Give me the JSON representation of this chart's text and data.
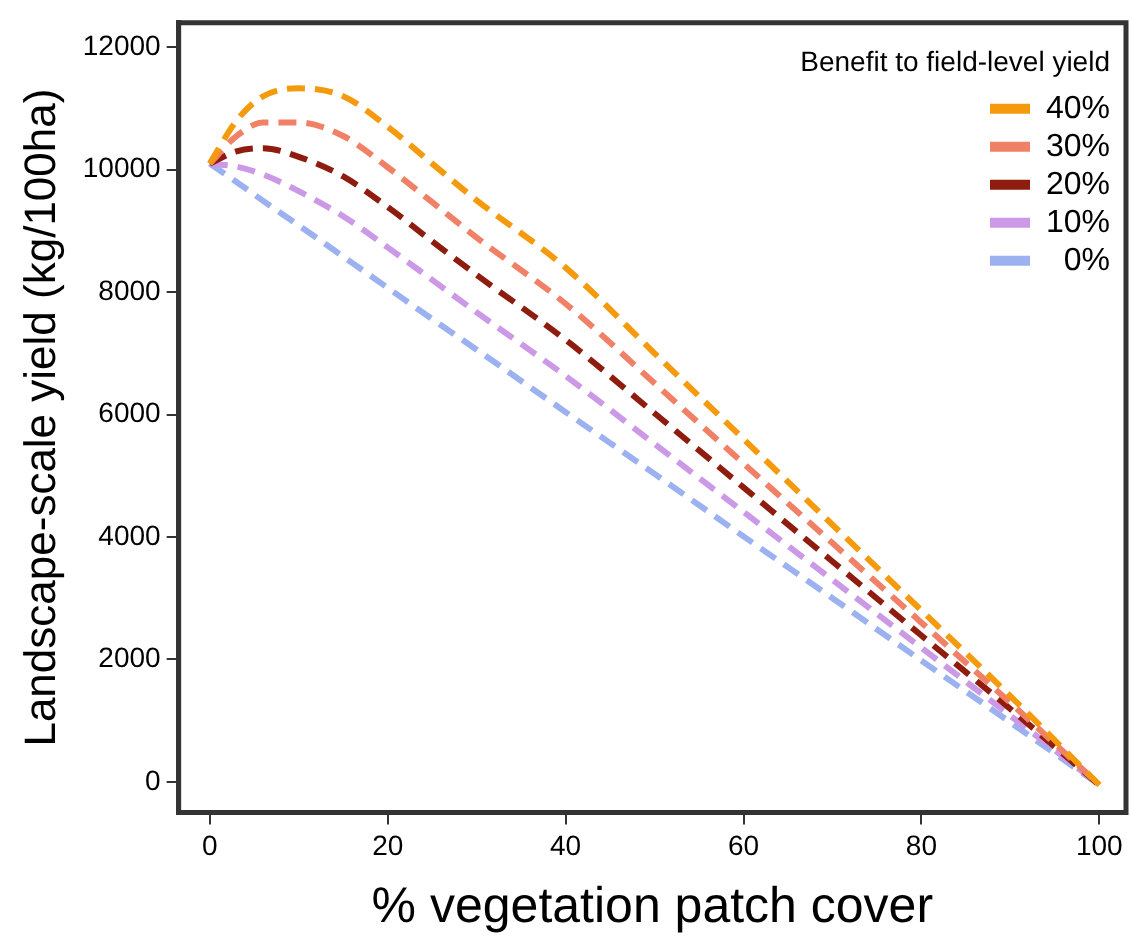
{
  "chart_data": {
    "type": "line",
    "xlabel": "% vegetation patch cover",
    "ylabel": "Landscape-scale yield (kg/100ha)",
    "legend_title": "Benefit to field-level yield",
    "legend": "top right",
    "line_style": "dashed",
    "marker": "none",
    "grid": false,
    "x": [
      0,
      3,
      6,
      10,
      15,
      20,
      25,
      30,
      40,
      50,
      60,
      70,
      80,
      90,
      100
    ],
    "xlim": [
      -3.5,
      103
    ],
    "xticks": [
      0,
      20,
      40,
      60,
      80,
      100
    ],
    "ylim": [
      -500,
      12400
    ],
    "yticks": [
      0,
      2000,
      4000,
      6000,
      8000,
      10000,
      12000
    ],
    "series": [
      {
        "name": "40%",
        "color": "#f59a0c",
        "values": [
          10100,
          10800,
          11200,
          11330,
          11200,
          10700,
          10100,
          9500,
          8400,
          7000,
          5600,
          4200,
          2800,
          1400,
          -50
        ]
      },
      {
        "name": "30%",
        "color": "#f08066",
        "values": [
          10100,
          10550,
          10770,
          10770,
          10550,
          10040,
          9470,
          8890,
          7810,
          6510,
          5200,
          3900,
          2600,
          1290,
          -50
        ]
      },
      {
        "name": "20%",
        "color": "#8e1d0f",
        "values": [
          10100,
          10300,
          10350,
          10210,
          9890,
          9390,
          8830,
          8280,
          7220,
          6020,
          4810,
          3600,
          2390,
          1190,
          -50
        ]
      },
      {
        "name": "10%",
        "color": "#cc99e6",
        "values": [
          10100,
          10050,
          9920,
          9650,
          9240,
          8730,
          8200,
          7670,
          6630,
          5520,
          4410,
          3300,
          2190,
          1080,
          -50
        ]
      },
      {
        "name": " 0%",
        "color": "#9cb1f0",
        "values": [
          10100,
          9800,
          9490,
          9090,
          8580,
          8070,
          7560,
          7060,
          6040,
          5030,
          4010,
          3000,
          1980,
          970,
          -50
        ]
      }
    ]
  }
}
